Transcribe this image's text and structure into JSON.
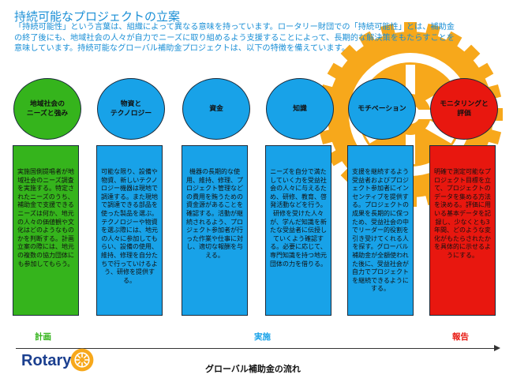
{
  "title": "持続可能なプロジェクトの立案",
  "intro": "「持続可能性」という言葉は、組織によって異なる意味を持っています。ロータリー財団での「持続可能性」とは、補助金の終了後にも、地域社会の人々が自力でニーズに取り組めるよう支援することによって、長期的な解決策をもたらすことを意味しています。持続可能なグローバル補助金プロジェクトは、以下の特徴を備えています。",
  "columns": [
    {
      "heading": "地域社会の\nニーズと強み",
      "body": "実施国側提唱者が地域社会のニーズ調査を実施する。特定されたニーズのうち、補助金で支援できるニーズは何か、地元の人々の価値観や文化はどのようなものかを判断する。計画立案の際には、地元の複数の協力団体にも参加してもらう。",
      "circle_color": "#35b41c",
      "box_color": "#35b41c"
    },
    {
      "heading": "物資と\nテクノロジー",
      "body": "可能な限り、設備や物資、新しいテクノロジー機器は現地で調達する。また現地で調達できる部品を使った製品を選ぶ。テクノロジーや物資を選ぶ際には、地元の人々に参加してもらい、設備の使用、維持、修理を自分たちで行っていけるよう、研修を提供する。",
      "circle_color": "#18a2e8",
      "box_color": "#18a2e8"
    },
    {
      "heading": "資金",
      "body": "機器の長期的な使用、維持、修理、プロジェクト管理などの費用を賄うための資金源があることを確認する。活動が継続されるよう、プロジェクト参加者が行った作業や仕事に対し、適切な報酬を与える。",
      "circle_color": "#18a2e8",
      "box_color": "#18a2e8"
    },
    {
      "heading": "知識",
      "body": "ニーズを自分で満たしていく力を受益社会の人々に与えるため、研修、教育、啓発活動などを行う。研修を受けた人々が、学んだ知識を新たな受益者に伝授していくよう確認する。必要に応じて、専門知識を持つ地元団体の力を借りる。",
      "circle_color": "#18a2e8",
      "box_color": "#18a2e8"
    },
    {
      "heading": "モチベーション",
      "body": "支援を継続するよう受益者およびプロジェクト参加者にインセンティブを提供する。プロジェクトの成果を長期的に保つため、受益社会の中でリーダー的役割を引き受けてくれる人を探す。グローバル補助金が全額使われた後に、受益社会が自力でプロジェクトを継続できるようにする。",
      "circle_color": "#18a2e8",
      "box_color": "#18a2e8"
    },
    {
      "heading": "モニタリングと\n評価",
      "body": "明確で測定可能なプロジェクト目標を立て、プロジェクトのデータを集める方法を決める。評価に用いる基本データを記録し、少なくとも3年間、どのような変化がもたらされたかを具体的に示せるようにする。",
      "circle_color": "#e8170f",
      "box_color": "#e8170f"
    }
  ],
  "stages": [
    {
      "label": "計画",
      "color": "#35b41c"
    },
    {
      "label": "実施",
      "color": "#18a2e8"
    },
    {
      "label": "報告",
      "color": "#e8170f"
    }
  ],
  "logo_text": "Rotary",
  "flow_label": "グローバル補助金の流れ",
  "colors": {
    "title": "#1a8fd6",
    "wheel": "#f7a81b",
    "rotary_blue": "#1b3f8f"
  }
}
